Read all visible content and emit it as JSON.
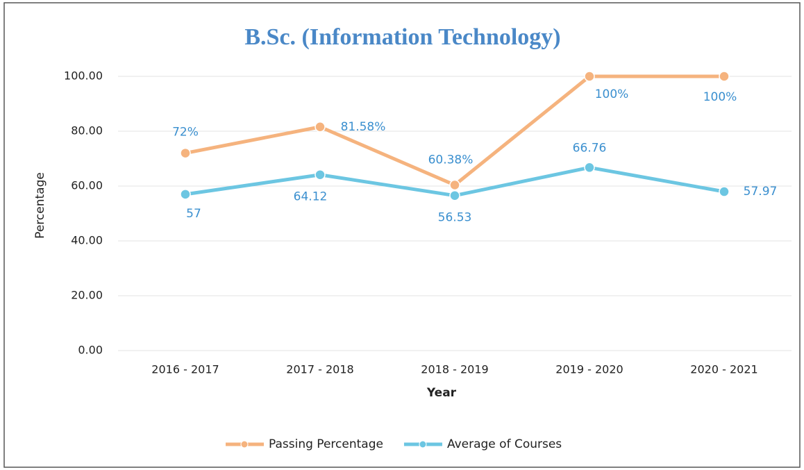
{
  "chart_data": {
    "type": "line",
    "title": "B.Sc. (Information Technology)",
    "x_label": "Year",
    "y_label": "Percentage",
    "categories": [
      "2016 - 2017",
      "2017 - 2018",
      "2018 - 2019",
      "2019 - 2020",
      "2020 - 2021"
    ],
    "series": [
      {
        "name": "Passing Percentage",
        "color": "#f5b37e",
        "values": [
          72,
          81.58,
          60.38,
          100,
          100
        ],
        "value_labels": [
          "72%",
          "81.58%",
          "60.38%",
          "100%",
          "100%"
        ]
      },
      {
        "name": "Average of Courses",
        "color": "#6cc6e2",
        "values": [
          57,
          64.12,
          56.53,
          66.76,
          57.97
        ]
      }
    ],
    "ylim": [
      0,
      100
    ],
    "yticks": [
      {
        "value": 0,
        "label": "0.00"
      },
      {
        "value": 20,
        "label": "20.00"
      },
      {
        "value": 40,
        "label": "40.00"
      },
      {
        "value": 60,
        "label": "60.00"
      },
      {
        "value": 80,
        "label": "80.00"
      },
      {
        "value": 100,
        "label": "100.00"
      }
    ],
    "grid": true,
    "legend": "bottom"
  }
}
